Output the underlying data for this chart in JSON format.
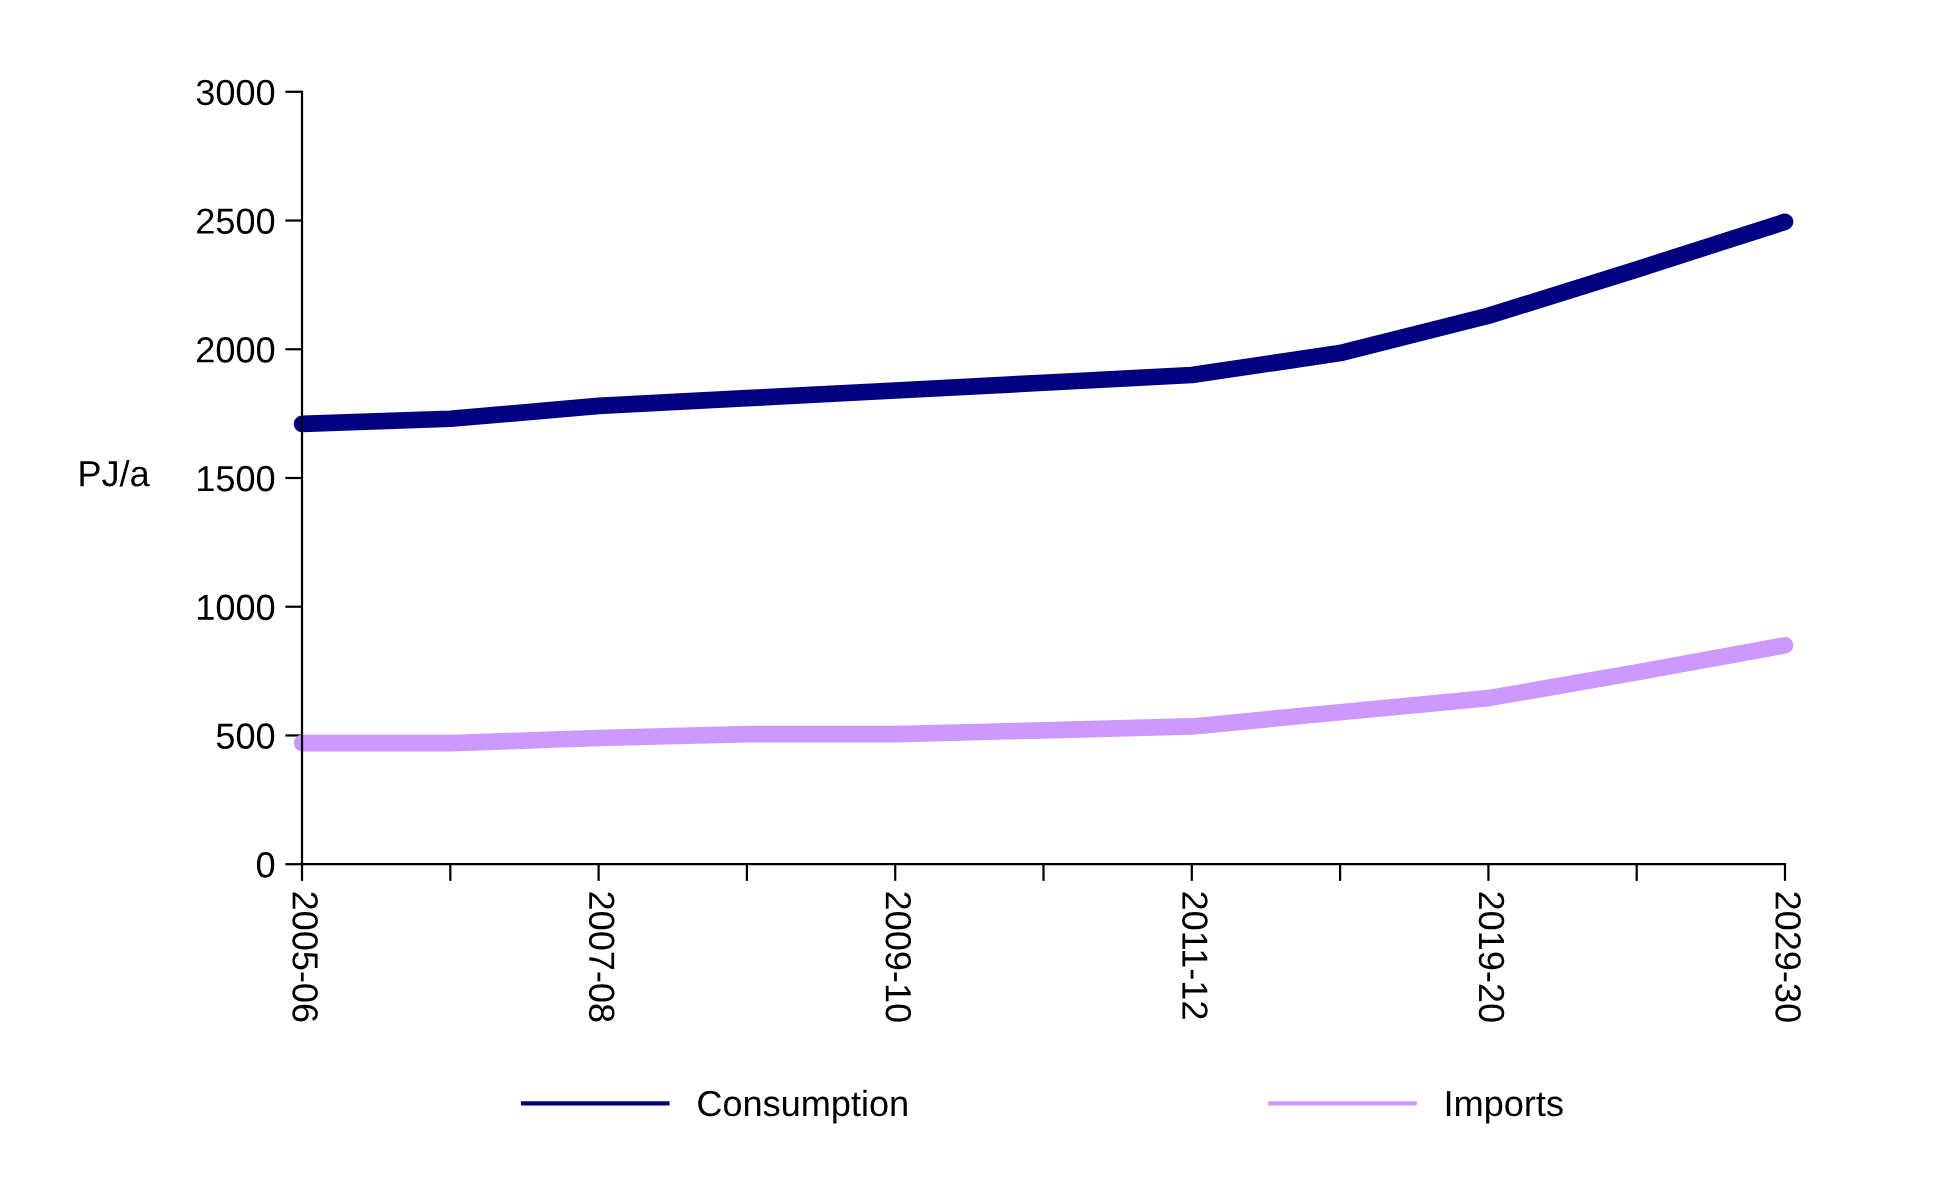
{
  "chart_data": {
    "type": "line",
    "ylabel": "PJ/a",
    "categories": [
      "2005-06",
      null,
      "2007-08",
      null,
      "2009-10",
      null,
      "2011-12",
      null,
      "2019-20",
      null,
      "2029-30"
    ],
    "series": [
      {
        "name": "Consumption",
        "color": "#000080",
        "values": [
          1710,
          1730,
          1780,
          1810,
          1840,
          1870,
          1900,
          1985,
          2130,
          2310,
          2495
        ]
      },
      {
        "name": "Imports",
        "color": "#cc99ff",
        "values": [
          470,
          470,
          490,
          505,
          505,
          520,
          535,
          590,
          645,
          745,
          850
        ]
      }
    ],
    "ylim": [
      0,
      3000
    ],
    "yticks": [
      0,
      500,
      1000,
      1500,
      2000,
      2500,
      3000
    ],
    "grid": false,
    "legend": "bottom",
    "marker": "none",
    "line_style": "solid"
  }
}
